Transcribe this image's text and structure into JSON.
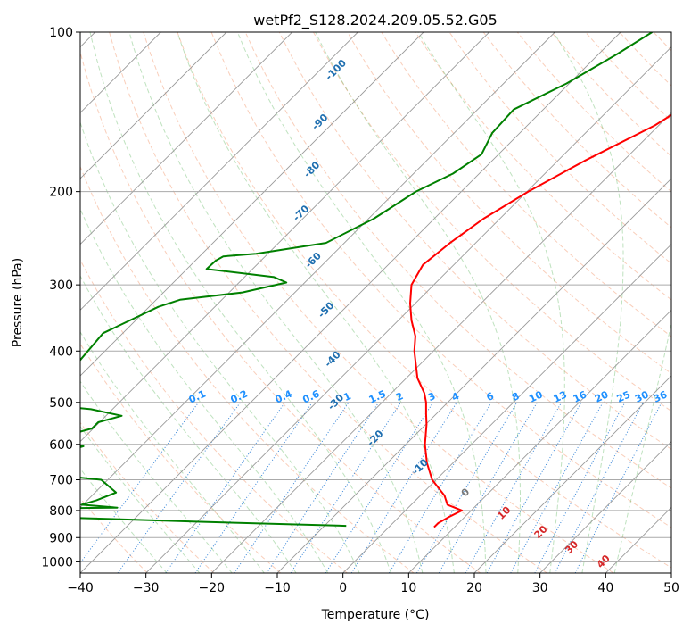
{
  "chart_data": {
    "type": "line",
    "title": "wetPf2_S128.2024.209.05.52.G05",
    "xlabel": "Temperature (°C)",
    "ylabel": "Pressure (hPa)",
    "xlim": [
      -40,
      50
    ],
    "ylim": [
      1050,
      100
    ],
    "y_scale": "log",
    "skew": true,
    "grid": true,
    "x_ticks": [
      -40,
      -30,
      -20,
      -10,
      0,
      10,
      20,
      30,
      40,
      50
    ],
    "y_ticks": [
      100,
      200,
      300,
      400,
      500,
      600,
      700,
      800,
      900,
      1000
    ],
    "series": [
      {
        "name": "",
        "color": "#ff0000",
        "points": [
          [
            100,
            -15.3
          ],
          [
            125,
            -16.8
          ],
          [
            150,
            -20.6
          ],
          [
            175,
            -25.9
          ],
          [
            200,
            -29.8
          ],
          [
            225,
            -32.5
          ],
          [
            250,
            -33.9
          ],
          [
            275,
            -34.7
          ],
          [
            300,
            -33.4
          ],
          [
            325,
            -30.8
          ],
          [
            350,
            -28.0
          ],
          [
            375,
            -25.0
          ],
          [
            400,
            -22.9
          ],
          [
            450,
            -18.3
          ],
          [
            480,
            -15.0
          ],
          [
            500,
            -13.3
          ],
          [
            525,
            -11.6
          ],
          [
            550,
            -9.9
          ],
          [
            600,
            -7.1
          ],
          [
            650,
            -4.0
          ],
          [
            700,
            -0.6
          ],
          [
            750,
            3.7
          ],
          [
            780,
            5.5
          ],
          [
            800,
            8.6
          ],
          [
            820,
            7.7
          ],
          [
            845,
            6.9
          ],
          [
            860,
            6.9
          ]
        ]
      },
      {
        "name": "",
        "color": "#008000",
        "points": [
          [
            100,
            -35.2
          ],
          [
            110,
            -37.2
          ],
          [
            125,
            -40.4
          ],
          [
            140,
            -44.5
          ],
          [
            155,
            -44.2
          ],
          [
            170,
            -42.6
          ],
          [
            185,
            -44.0
          ],
          [
            200,
            -46.9
          ],
          [
            225,
            -49.2
          ],
          [
            250,
            -52.8
          ],
          [
            262,
            -61.8
          ],
          [
            265,
            -66.4
          ],
          [
            270,
            -66.9
          ],
          [
            280,
            -67.0
          ],
          [
            290,
            -55.5
          ],
          [
            297,
            -52.8
          ],
          [
            310,
            -58.0
          ],
          [
            320,
            -66.4
          ],
          [
            330,
            -68.6
          ],
          [
            370,
            -73.0
          ],
          [
            505,
            -71.4
          ],
          [
            515,
            -63.3
          ],
          [
            530,
            -57.6
          ],
          [
            545,
            -60.2
          ],
          [
            560,
            -60.2
          ],
          [
            575,
            -62.7
          ],
          [
            590,
            -62.4
          ],
          [
            605,
            -58.8
          ],
          [
            625,
            -61.7
          ],
          [
            655,
            -67.1
          ],
          [
            665,
            -74.6
          ],
          [
            685,
            -59.4
          ],
          [
            700,
            -51.0
          ],
          [
            740,
            -46.8
          ],
          [
            765,
            -48.6
          ],
          [
            780,
            -50.2
          ],
          [
            790,
            -44.3
          ],
          [
            800,
            -85.5
          ],
          [
            806,
            -85.7
          ],
          [
            812,
            -75.0
          ],
          [
            822,
            -54.8
          ],
          [
            840,
            -29.6
          ],
          [
            855,
            -6.7
          ]
        ]
      }
    ],
    "annotations": {
      "mixing_ratio": [
        "0.1",
        "0.2",
        "0.4",
        "0.6",
        "1",
        "1.5",
        "2",
        "3",
        "4",
        "6",
        "8",
        "10",
        "13",
        "16",
        "20",
        "25",
        "30",
        "36"
      ],
      "isotherm": [
        "-100",
        "-90",
        "-80",
        "-70",
        "-60",
        "-50",
        "-40",
        "-30",
        "-20",
        "-10",
        "0",
        "10",
        "20",
        "30",
        "40"
      ]
    }
  }
}
